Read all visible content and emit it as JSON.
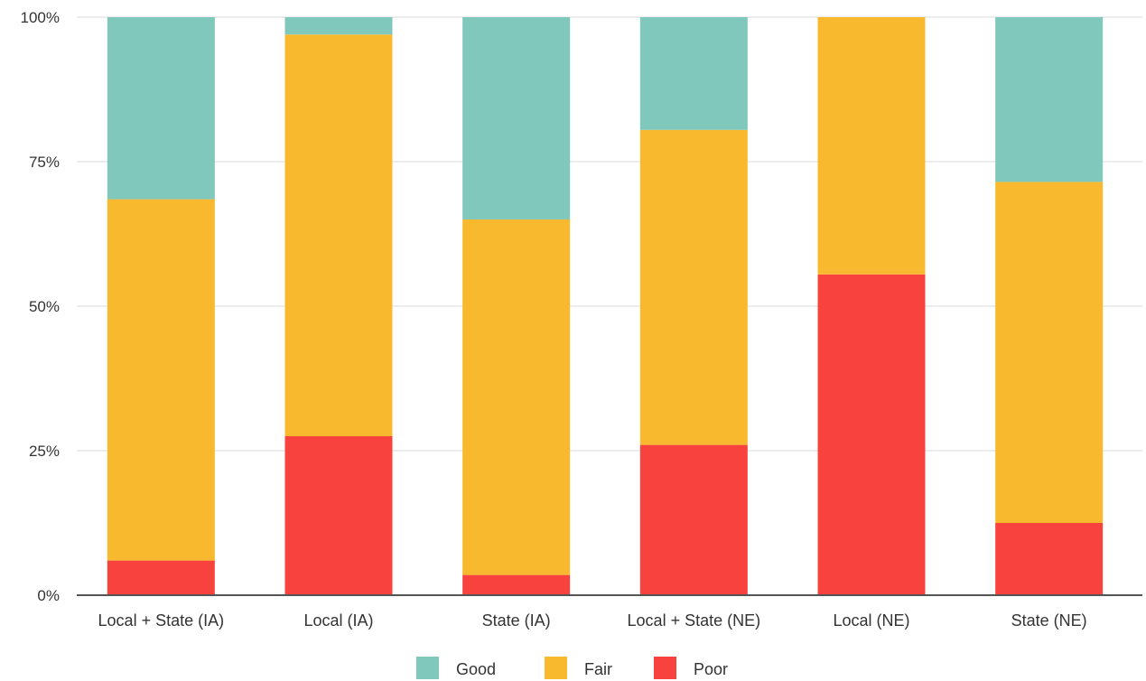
{
  "chart_data": {
    "type": "bar",
    "stacked": true,
    "categories": [
      "Local + State (IA)",
      "Local (IA)",
      "State (IA)",
      "Local + State (NE)",
      "Local (NE)",
      "State (NE)"
    ],
    "series": [
      {
        "name": "Poor",
        "color": "#f8423e",
        "values": [
          6,
          27.5,
          3.5,
          26,
          55.5,
          12.5
        ]
      },
      {
        "name": "Fair",
        "color": "#f8b92e",
        "values": [
          62.5,
          69.5,
          61.5,
          54.5,
          44.5,
          59
        ]
      },
      {
        "name": "Good",
        "color": "#80c7bc",
        "values": [
          31.5,
          3,
          35,
          19.5,
          0,
          28.5
        ]
      }
    ],
    "legend_order": [
      "Good",
      "Fair",
      "Poor"
    ],
    "ylim": [
      0,
      100
    ],
    "yticks": [
      "0%",
      "25%",
      "50%",
      "75%",
      "100%"
    ],
    "grid": true,
    "legend_position": "bottom"
  }
}
